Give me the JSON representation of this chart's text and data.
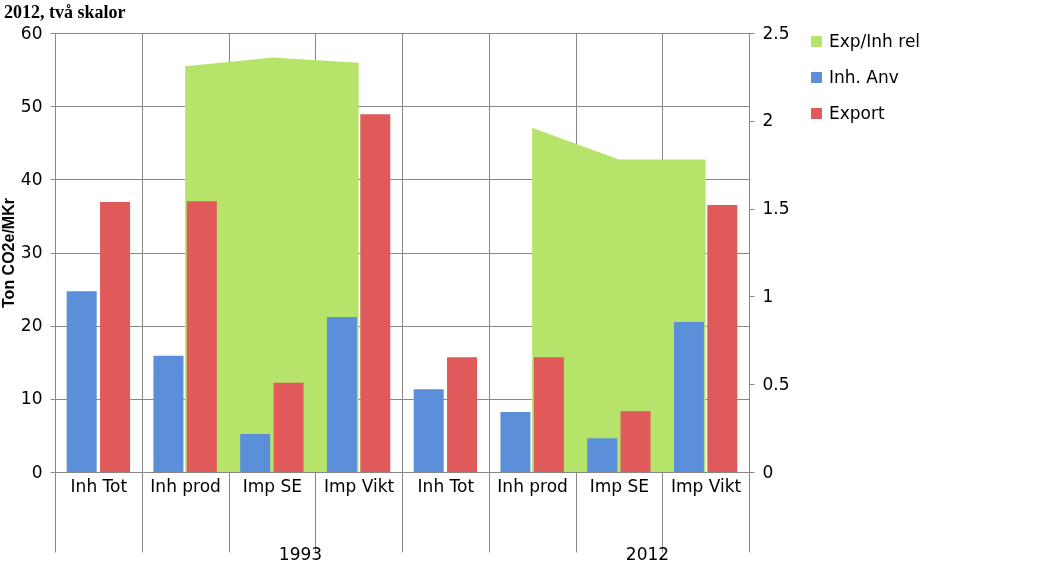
{
  "chart_data": {
    "type": "bar",
    "title": "2012, två skalor",
    "ylabel": "Ton CO2e/MKr",
    "categories": [
      "Inh Tot",
      "Inh prod",
      "Imp SE",
      "Imp Vikt",
      "Inh Tot",
      "Inh prod",
      "Imp SE",
      "Imp Vikt"
    ],
    "annotations": [
      "1993",
      "2012"
    ],
    "series": [
      {
        "name": "Exp/Inh rel",
        "type": "area",
        "axis": "y2",
        "color": "#b6e46a",
        "values": [
          null,
          2.31,
          2.36,
          2.33,
          null,
          1.96,
          1.78,
          1.78
        ]
      },
      {
        "name": "Inh. Anv",
        "color": "#5b8fd9",
        "values": [
          24.7,
          15.9,
          5.2,
          21.2,
          11.3,
          8.2,
          4.6,
          20.5
        ]
      },
      {
        "name": "Export",
        "color": "#e05a5a",
        "values": [
          36.9,
          37,
          12.2,
          48.9,
          15.7,
          15.7,
          8.3,
          36.5
        ]
      }
    ],
    "ylim": [
      0,
      60
    ],
    "yticks": [
      0,
      10,
      20,
      30,
      40,
      50,
      60
    ],
    "y2lim": [
      0,
      2.5
    ],
    "y2ticks": [
      0,
      0.5,
      1,
      1.5,
      2,
      2.5
    ],
    "grid": "y",
    "legend": "right"
  }
}
